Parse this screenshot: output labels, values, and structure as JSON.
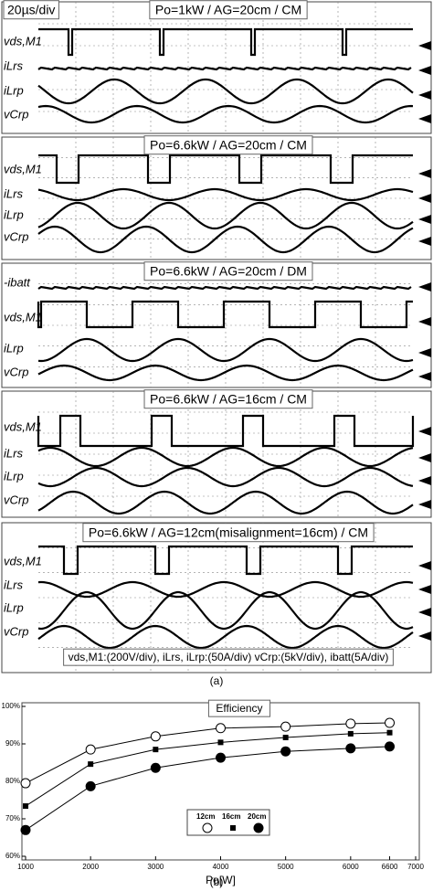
{
  "timebase": "20µs/div",
  "panels": [
    {
      "title": "Po=1kW / AG=20cm / CM",
      "channels": [
        "vds,M1",
        "iLrs",
        "iLrp",
        "vCrp"
      ]
    },
    {
      "title": "Po=6.6kW / AG=20cm / CM",
      "channels": [
        "vds,M1",
        "iLrs",
        "iLrp",
        "vCrp"
      ]
    },
    {
      "title": "Po=6.6kW / AG=20cm / DM",
      "channels": [
        "-ibatt",
        "vds,M1",
        "iLrp",
        "vCrp"
      ]
    },
    {
      "title": "Po=6.6kW / AG=16cm / CM",
      "channels": [
        "vds,M1",
        "iLrs",
        "iLrp",
        "vCrp"
      ]
    },
    {
      "title": "Po=6.6kW / AG=12cm(misalignment=16cm) / CM",
      "channels": [
        "vds,M1",
        "iLrs",
        "iLrp",
        "vCrp"
      ]
    }
  ],
  "scale_note": "vds,M1:(200V/div), iLrs, iLrp:(50A/div)  vCrp:(5kV/div), ibatt(5A/div)",
  "caption_a": "(a)",
  "caption_b": "(b)",
  "chart_data": {
    "type": "line",
    "title": "Efficiency",
    "x_label": "Po[W]",
    "x": [
      1000,
      2000,
      3000,
      4000,
      5000,
      6000,
      6600
    ],
    "series": [
      {
        "name": "12cm",
        "color": "#000000",
        "marker": "circle-open",
        "values": [
          79.5,
          88.5,
          92,
          94.2,
          94.6,
          95.4,
          95.6
        ]
      },
      {
        "name": "16cm",
        "color": "#000000",
        "marker": "square",
        "values": [
          73.4,
          84.6,
          88.5,
          90.4,
          91.7,
          92.7,
          93
        ]
      },
      {
        "name": "20cm",
        "color": "#000000",
        "marker": "circle-filled",
        "values": [
          67,
          78.7,
          83.6,
          86.3,
          88,
          88.8,
          89.3
        ]
      }
    ],
    "xlim": [
      1000,
      7000
    ],
    "xticks": [
      1000,
      2000,
      3000,
      4000,
      5000,
      6000,
      6600,
      7000
    ],
    "ylim": [
      60,
      100
    ],
    "yticks": [
      {
        "value": 60,
        "label": "60%"
      },
      {
        "value": 70,
        "label": "70%"
      },
      {
        "value": 80,
        "label": "80%"
      },
      {
        "value": 90,
        "label": "90%"
      },
      {
        "value": 100,
        "label": "100%"
      }
    ]
  }
}
